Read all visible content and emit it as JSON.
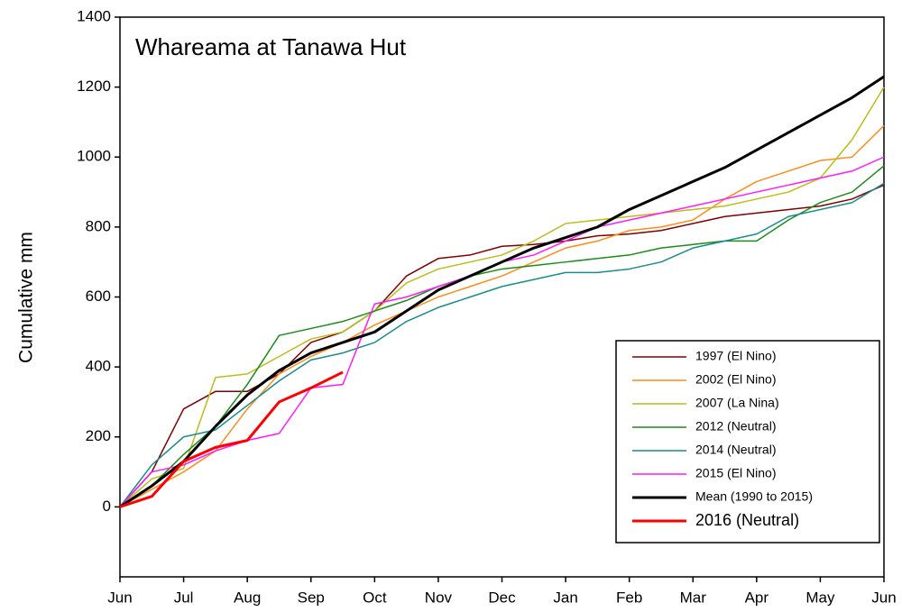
{
  "chart_data": {
    "type": "line",
    "title": "Whareama at Tanawa Hut",
    "y_label": "Cumulative mm",
    "categories": [
      "Jun",
      null,
      "Jul",
      null,
      "Aug",
      null,
      "Sep",
      null,
      "Oct",
      null,
      "Nov",
      null,
      "Dec",
      null,
      "Jan",
      null,
      "Feb",
      null,
      "Mar",
      null,
      "Apr",
      null,
      "May",
      null,
      "Jun"
    ],
    "ylim": [
      -200,
      1400
    ],
    "yticks": [
      0,
      200,
      400,
      600,
      800,
      1000,
      1200,
      1400
    ],
    "legend": "lower right",
    "grid": false,
    "series": [
      {
        "name": "1997 (El Nino)",
        "color": "#800000",
        "width": 1.5,
        "values": [
          0,
          100,
          280,
          330,
          330,
          380,
          470,
          500,
          560,
          660,
          710,
          720,
          745,
          750,
          760,
          775,
          780,
          790,
          810,
          830,
          840,
          850,
          860,
          880,
          920
        ]
      },
      {
        "name": "2002 (El Nino)",
        "color": "#ff8c1a",
        "width": 1.5,
        "values": [
          0,
          50,
          100,
          160,
          280,
          380,
          430,
          470,
          520,
          560,
          600,
          630,
          660,
          700,
          740,
          760,
          790,
          800,
          820,
          880,
          930,
          960,
          990,
          1000,
          1090
        ]
      },
      {
        "name": "2007 (La Nina)",
        "color": "#bcbc1a",
        "width": 1.5,
        "values": [
          0,
          80,
          110,
          370,
          380,
          430,
          480,
          500,
          560,
          640,
          680,
          700,
          720,
          760,
          810,
          820,
          830,
          840,
          850,
          860,
          880,
          900,
          940,
          1050,
          1200
        ]
      },
      {
        "name": "2012 (Neutral)",
        "color": "#1a8c1a",
        "width": 1.5,
        "values": [
          0,
          60,
          150,
          230,
          350,
          490,
          510,
          530,
          560,
          590,
          630,
          660,
          680,
          690,
          700,
          710,
          720,
          740,
          750,
          760,
          760,
          820,
          870,
          900,
          975
        ]
      },
      {
        "name": "2014 (Neutral)",
        "color": "#1a8c8c",
        "width": 1.5,
        "values": [
          0,
          120,
          200,
          220,
          290,
          360,
          420,
          440,
          470,
          530,
          570,
          600,
          630,
          650,
          670,
          670,
          680,
          700,
          740,
          760,
          780,
          830,
          850,
          870,
          925
        ]
      },
      {
        "name": "2015 (El Nino)",
        "color": "#ff1aff",
        "width": 1.5,
        "values": [
          0,
          100,
          120,
          160,
          190,
          210,
          340,
          350,
          580,
          600,
          630,
          660,
          700,
          720,
          760,
          800,
          820,
          840,
          860,
          880,
          900,
          920,
          940,
          960,
          1000
        ]
      },
      {
        "name": "Mean (1990 to 2015)",
        "color": "#000000",
        "width": 3,
        "values": [
          0,
          60,
          130,
          230,
          320,
          390,
          440,
          470,
          500,
          560,
          620,
          660,
          700,
          740,
          770,
          800,
          850,
          890,
          930,
          970,
          1020,
          1070,
          1120,
          1170,
          1230
        ]
      },
      {
        "name": "2016 (Neutral)",
        "color": "#ff0000",
        "width": 3,
        "values": [
          0,
          30,
          130,
          170,
          190,
          300,
          340,
          385,
          null,
          null,
          null,
          null,
          null,
          null,
          null,
          null,
          null,
          null,
          null,
          null,
          null,
          null,
          null,
          null,
          null
        ]
      }
    ]
  }
}
